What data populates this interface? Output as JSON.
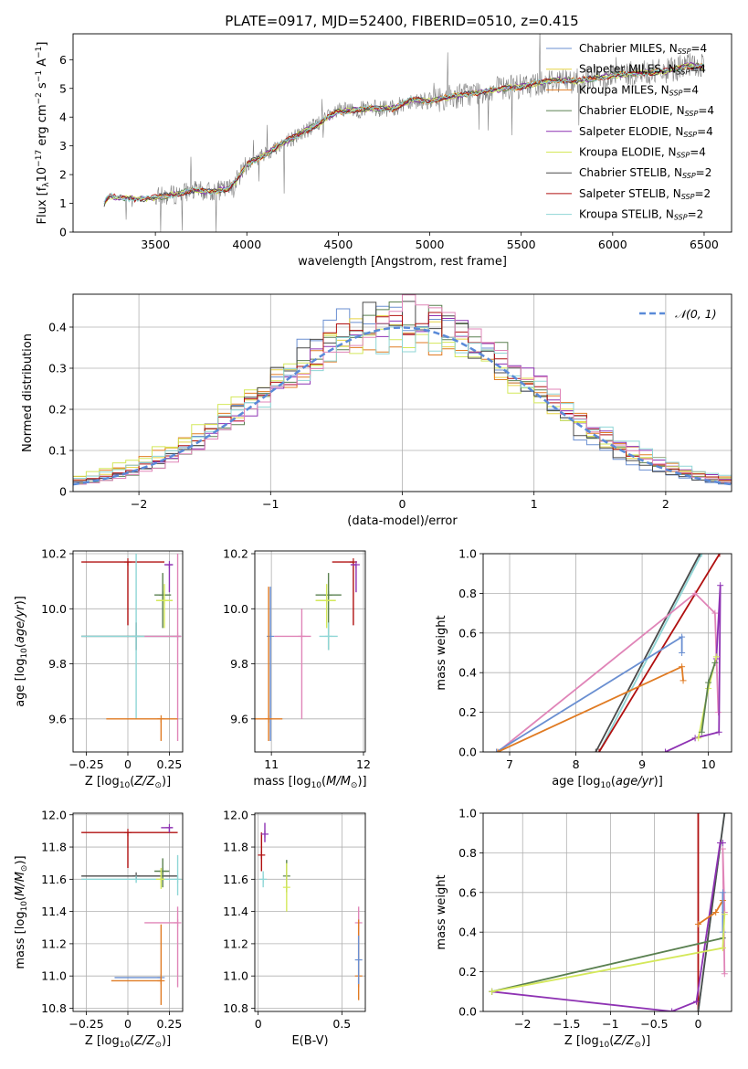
{
  "figure_title": "PLATE=0917, MJD=52400, FIBERID=0510, z=0.415",
  "colors": {
    "Chabrier MILES": "#6a8fd1",
    "Salpeter MILES": "#e5d345",
    "Kroupa MILES": "#e07b23",
    "Chabrier ELODIE": "#5a8050",
    "Salpeter ELODIE": "#8e32b3",
    "Kroupa ELODIE": "#d4e85a",
    "Chabrier STELIB": "#4a4a4a",
    "Salpeter STELIB": "#b01010",
    "Kroupa STELIB": "#8fd6d6",
    "pink": "#e085b8",
    "normal": "#5a8ad8",
    "data": "#808080"
  },
  "chart_data": [
    {
      "id": "spectrum",
      "type": "line",
      "title": "PLATE=0917, MJD=52400, FIBERID=0510, z=0.415",
      "xlabel": "wavelength [Angstrom, rest frame]",
      "ylabel": "Flux [f_λ 10^-17 erg cm^-2 s^-1 A^-1]",
      "xlim": [
        3050,
        6650
      ],
      "ylim": [
        0,
        6.9
      ],
      "xticks": [
        3500,
        4000,
        4500,
        5000,
        5500,
        6000,
        6500
      ],
      "yticks": [
        0,
        1,
        2,
        3,
        4,
        5,
        6
      ],
      "legend_position": "top-right",
      "series": [
        {
          "name": "Chabrier MILES, N_SSP=4"
        },
        {
          "name": "Salpeter MILES, N_SSP=4"
        },
        {
          "name": "Kroupa MILES, N_SSP=4"
        },
        {
          "name": "Chabrier ELODIE, N_SSP=4"
        },
        {
          "name": "Salpeter ELODIE, N_SSP=4"
        },
        {
          "name": "Kroupa ELODIE, N_SSP=4"
        },
        {
          "name": "Chabrier STELIB, N_SSP=2"
        },
        {
          "name": "Salpeter STELIB, N_SSP=2"
        },
        {
          "name": "Kroupa STELIB, N_SSP=2"
        }
      ],
      "continuum": {
        "x": [
          3200,
          3220,
          3250,
          3300,
          3400,
          3500,
          3600,
          3700,
          3800,
          3900,
          3950,
          4000,
          4100,
          4200,
          4300,
          4400,
          4500,
          4600,
          4700,
          4800,
          4900,
          5000,
          5100,
          5200,
          5300,
          5400,
          5500,
          5600,
          5700,
          5800,
          5900,
          6000,
          6100,
          6200,
          6300,
          6400,
          6500
        ],
        "y": [
          0,
          1.0,
          1.25,
          1.2,
          1.15,
          1.2,
          1.3,
          1.45,
          1.4,
          1.5,
          1.85,
          2.35,
          2.7,
          3.1,
          3.45,
          3.8,
          4.2,
          4.25,
          4.3,
          4.3,
          4.6,
          4.55,
          4.7,
          4.8,
          4.9,
          5.0,
          5.05,
          5.2,
          5.3,
          5.25,
          5.35,
          5.45,
          5.5,
          5.55,
          5.6,
          5.8,
          5.75
        ]
      }
    },
    {
      "id": "residuals",
      "type": "line",
      "xlabel": "(data-model)/error",
      "ylabel": "Normed distribution",
      "xlim": [
        -2.5,
        2.5
      ],
      "ylim": [
        0,
        0.48
      ],
      "xticks": [
        -2,
        -1,
        0,
        1,
        2
      ],
      "yticks": [
        0.0,
        0.1,
        0.2,
        0.3,
        0.4
      ],
      "grid": true,
      "legend_position": "top-right",
      "legend": [
        "𝒩(0, 1)"
      ]
    },
    {
      "id": "age_vs_Z",
      "type": "scatter",
      "xlabel": "Z [log10(Z/Z⊙)]",
      "ylabel": "age  [log10(age/yr)]",
      "xlim": [
        -0.33,
        0.33
      ],
      "ylim": [
        9.48,
        10.21
      ],
      "xticks": [
        -0.25,
        0.0,
        0.25
      ],
      "yticks": [
        9.6,
        9.8,
        10.0,
        10.2
      ],
      "grid": true,
      "points": [
        {
          "c": "Salpeter STELIB",
          "x": 0.0,
          "y": 10.17,
          "xerr": [
            0.28,
            0.22
          ],
          "yerr": [
            0.23,
            0.0
          ]
        },
        {
          "c": "Chabrier STELIB",
          "x": 0.05,
          "y": 9.9,
          "xerr": [
            0.33,
            0.27
          ],
          "yerr": [
            0.05,
            0.05
          ]
        },
        {
          "c": "Kroupa STELIB",
          "x": 0.05,
          "y": 9.9,
          "xerr": [
            0.33,
            0.27
          ],
          "yerr": [
            0.3,
            0.3
          ]
        },
        {
          "c": "pink",
          "x": 0.3,
          "y": 9.9,
          "xerr": [
            0.2,
            0.0
          ],
          "yerr": [
            0.38,
            0.3
          ]
        },
        {
          "c": "Kroupa MILES",
          "x": 0.2,
          "y": 9.6,
          "xerr": [
            0.33,
            0.1
          ],
          "yerr": [
            0.08,
            0.0
          ]
        },
        {
          "c": "Chabrier ELODIE",
          "x": 0.21,
          "y": 10.05,
          "xerr": [
            0.05,
            0.05
          ],
          "yerr": [
            0.12,
            0.08
          ]
        },
        {
          "c": "Kroupa ELODIE",
          "x": 0.22,
          "y": 10.03,
          "xerr": [
            0.05,
            0.05
          ],
          "yerr": [
            0.1,
            0.06
          ]
        },
        {
          "c": "Salpeter ELODIE",
          "x": 0.25,
          "y": 10.16,
          "xerr": [
            0.03,
            0.02
          ],
          "yerr": [
            0.1,
            0.0
          ]
        }
      ]
    },
    {
      "id": "age_vs_mass",
      "type": "scatter",
      "xlabel": "mass [log10(M/M⊙)]",
      "xlim": [
        10.82,
        12.02
      ],
      "ylim": [
        9.48,
        10.21
      ],
      "xticks": [
        11,
        12
      ],
      "yticks": [
        9.6,
        9.8,
        10.0,
        10.2
      ],
      "grid": true,
      "points": [
        {
          "c": "Salpeter STELIB",
          "x": 11.89,
          "y": 10.17,
          "xerr": [
            0.23,
            0.0
          ],
          "yerr": [
            0.23,
            0.0
          ]
        },
        {
          "c": "Salpeter ELODIE",
          "x": 11.92,
          "y": 10.16,
          "xerr": [
            0.06,
            0.0
          ],
          "yerr": [
            0.1,
            0.0
          ]
        },
        {
          "c": "Chabrier ELODIE",
          "x": 11.62,
          "y": 10.05,
          "xerr": [
            0.14,
            0.14
          ],
          "yerr": [
            0.2,
            0.08
          ]
        },
        {
          "c": "Kroupa ELODIE",
          "x": 11.6,
          "y": 10.03,
          "xerr": [
            0.12,
            0.1
          ],
          "yerr": [
            0.1,
            0.06
          ]
        },
        {
          "c": "Kroupa STELIB",
          "x": 11.62,
          "y": 9.9,
          "xerr": [
            0.1,
            0.1
          ],
          "yerr": [
            0.05,
            0.05
          ]
        },
        {
          "c": "pink",
          "x": 11.33,
          "y": 9.9,
          "xerr": [
            0.3,
            0.1
          ],
          "yerr": [
            0.3,
            0.1
          ]
        },
        {
          "c": "Chabrier MILES",
          "x": 10.99,
          "y": 9.9,
          "xerr": [
            0.0,
            0.0
          ],
          "yerr": [
            0.38,
            0.18
          ]
        },
        {
          "c": "Kroupa MILES",
          "x": 10.97,
          "y": 9.6,
          "xerr": [
            0.15,
            0.15
          ],
          "yerr": [
            0.08,
            0.48
          ]
        }
      ]
    },
    {
      "id": "cumulative_age",
      "type": "line",
      "xlabel": "age  [log10(age/yr)]",
      "ylabel": "mass weight",
      "xlim": [
        6.6,
        10.35
      ],
      "ylim": [
        0,
        1.0
      ],
      "xticks": [
        7,
        8,
        9,
        10
      ],
      "yticks": [
        0.0,
        0.2,
        0.4,
        0.6,
        0.8,
        1.0
      ],
      "grid": true,
      "series": [
        {
          "c": "Kroupa STELIB",
          "x": [
            8.35,
            9.9
          ],
          "y": [
            0.0,
            1.0
          ]
        },
        {
          "c": "Chabrier STELIB",
          "x": [
            8.3,
            9.87
          ],
          "y": [
            0.0,
            1.0
          ]
        },
        {
          "c": "Salpeter STELIB",
          "x": [
            8.35,
            10.17
          ],
          "y": [
            0.0,
            1.0
          ]
        },
        {
          "c": "pink",
          "x": [
            6.82,
            9.8,
            10.1,
            10.15
          ],
          "y": [
            0.0,
            0.8,
            0.7,
            0.2
          ]
        },
        {
          "c": "Chabrier MILES",
          "x": [
            6.8,
            9.6,
            9.6
          ],
          "y": [
            0.0,
            0.58,
            0.5
          ]
        },
        {
          "c": "Kroupa MILES",
          "x": [
            6.82,
            9.6,
            9.62
          ],
          "y": [
            0.0,
            0.43,
            0.36
          ]
        },
        {
          "c": "Salpeter ELODIE",
          "x": [
            9.35,
            9.8,
            10.16,
            10.18,
            10.12
          ],
          "y": [
            0.0,
            0.07,
            0.1,
            0.84,
            0.47
          ]
        },
        {
          "c": "Kroupa ELODIE",
          "x": [
            9.85,
            10.0,
            10.12
          ],
          "y": [
            0.07,
            0.32,
            0.48
          ]
        },
        {
          "c": "Chabrier ELODIE",
          "x": [
            9.9,
            10.0,
            10.1
          ],
          "y": [
            0.1,
            0.35,
            0.45
          ]
        }
      ]
    },
    {
      "id": "mass_vs_Z",
      "type": "scatter",
      "xlabel": "Z [log10(Z/Z⊙)]",
      "ylabel": "mass [log10(M/M⊙)]",
      "xlim": [
        -0.33,
        0.33
      ],
      "ylim": [
        10.78,
        12.01
      ],
      "xticks": [
        -0.25,
        0.0,
        0.25
      ],
      "yticks": [
        10.8,
        11.0,
        11.2,
        11.4,
        11.6,
        11.8,
        12.0
      ],
      "grid": true,
      "points": [
        {
          "c": "Salpeter STELIB",
          "x": 0.0,
          "y": 11.89,
          "xerr": [
            0.28,
            0.3
          ],
          "yerr": [
            0.22,
            0.0
          ]
        },
        {
          "c": "Salpeter ELODIE",
          "x": 0.25,
          "y": 11.92,
          "xerr": [
            0.05,
            0.02
          ],
          "yerr": [
            0.03,
            0.0
          ]
        },
        {
          "c": "Chabrier STELIB",
          "x": 0.05,
          "y": 11.62,
          "xerr": [
            0.33,
            0.25
          ],
          "yerr": [
            0.02,
            0.0
          ]
        },
        {
          "c": "Kroupa STELIB",
          "x": 0.05,
          "y": 11.6,
          "xerr": [
            0.33,
            0.25
          ],
          "yerr": [
            0.02,
            0.0
          ]
        },
        {
          "c": "Chabrier ELODIE",
          "x": 0.21,
          "y": 11.65,
          "xerr": [
            0.05,
            0.04
          ],
          "yerr": [
            0.1,
            0.08
          ]
        },
        {
          "c": "Kroupa ELODIE",
          "x": 0.2,
          "y": 11.6,
          "xerr": [
            0.03,
            0.02
          ],
          "yerr": [
            0.06,
            0.07
          ]
        },
        {
          "c": "Kroupa STELIB",
          "x": 0.3,
          "y": 11.6,
          "xerr": [
            0.0,
            0.0
          ],
          "yerr": [
            0.1,
            0.15
          ]
        },
        {
          "c": "pink",
          "x": 0.3,
          "y": 11.33,
          "xerr": [
            0.2,
            0.0
          ],
          "yerr": [
            0.4,
            0.1
          ]
        },
        {
          "c": "Chabrier MILES",
          "x": 0.2,
          "y": 10.99,
          "xerr": [
            0.28,
            0.0
          ],
          "yerr": [
            0.0,
            0.0
          ]
        },
        {
          "c": "Kroupa MILES",
          "x": 0.2,
          "y": 10.97,
          "xerr": [
            0.3,
            0.0
          ],
          "yerr": [
            0.15,
            0.35
          ]
        }
      ]
    },
    {
      "id": "mass_vs_EBV",
      "type": "scatter",
      "xlabel": "E(B-V)",
      "xlim": [
        -0.02,
        0.64
      ],
      "ylim": [
        10.78,
        12.01
      ],
      "xticks": [
        0.0,
        0.5
      ],
      "yticks": [
        10.8,
        11.0,
        11.2,
        11.4,
        11.6,
        11.8,
        12.0
      ],
      "grid": true,
      "points": [
        {
          "c": "Salpeter STELIB",
          "x": 0.02,
          "y": 11.75,
          "xerr": [
            0,
            0
          ],
          "yerr": [
            0.1,
            0.14
          ]
        },
        {
          "c": "Salpeter ELODIE",
          "x": 0.04,
          "y": 11.88,
          "xerr": [
            0,
            0
          ],
          "yerr": [
            0.05,
            0.07
          ]
        },
        {
          "c": "Kroupa STELIB",
          "x": 0.03,
          "y": 11.6,
          "xerr": [
            0,
            0
          ],
          "yerr": [
            0.05,
            0.05
          ]
        },
        {
          "c": "Chabrier ELODIE",
          "x": 0.17,
          "y": 11.62,
          "xerr": [
            0,
            0
          ],
          "yerr": [
            0.1,
            0.1
          ]
        },
        {
          "c": "Kroupa ELODIE",
          "x": 0.17,
          "y": 11.55,
          "xerr": [
            0,
            0
          ],
          "yerr": [
            0.15,
            0.15
          ]
        },
        {
          "c": "pink",
          "x": 0.6,
          "y": 11.33,
          "xerr": [
            0,
            0
          ],
          "yerr": [
            0.4,
            0.1
          ]
        },
        {
          "c": "Kroupa MILES",
          "x": 0.6,
          "y": 11.0,
          "xerr": [
            0,
            0
          ],
          "yerr": [
            0.15,
            0.35
          ]
        },
        {
          "c": "Chabrier MILES",
          "x": 0.6,
          "y": 11.1,
          "xerr": [
            0,
            0
          ],
          "yerr": [
            0.15,
            0.15
          ]
        }
      ]
    },
    {
      "id": "cumulative_Z",
      "type": "line",
      "xlabel": "Z [log10(Z/Z⊙)]",
      "ylabel": "mass weight",
      "xlim": [
        -2.45,
        0.38
      ],
      "ylim": [
        0,
        1.0
      ],
      "xticks": [
        -2.0,
        -1.5,
        -1.0,
        -0.5,
        0.0
      ],
      "yticks": [
        0.0,
        0.2,
        0.4,
        0.6,
        0.8,
        1.0
      ],
      "grid": true,
      "series": [
        {
          "c": "Salpeter STELIB",
          "x": [
            0.0,
            0.0
          ],
          "y": [
            0.0,
            1.0
          ]
        },
        {
          "c": "Kroupa STELIB",
          "x": [
            0.0,
            0.3
          ],
          "y": [
            0.0,
            1.0
          ]
        },
        {
          "c": "Chabrier STELIB",
          "x": [
            0.0,
            0.3
          ],
          "y": [
            0.0,
            1.0
          ]
        },
        {
          "c": "pink",
          "x": [
            0.3,
            0.28,
            0.3
          ],
          "y": [
            0.19,
            0.82,
            0.5
          ]
        },
        {
          "c": "Salpeter ELODIE",
          "x": [
            -2.35,
            -0.3,
            -0.02,
            0.25,
            0.28
          ],
          "y": [
            0.1,
            0.0,
            0.05,
            0.85,
            0.85
          ]
        },
        {
          "c": "Kroupa MILES",
          "x": [
            0.0,
            0.2,
            0.28
          ],
          "y": [
            0.44,
            0.5,
            0.56
          ]
        },
        {
          "c": "Chabrier ELODIE",
          "x": [
            -2.35,
            0.28
          ],
          "y": [
            0.1,
            0.37
          ]
        },
        {
          "c": "Kroupa ELODIE",
          "x": [
            -2.35,
            0.28
          ],
          "y": [
            0.1,
            0.32
          ]
        },
        {
          "c": "Chabrier MILES",
          "x": [
            0.28,
            0.28
          ],
          "y": [
            0.4,
            0.6
          ]
        },
        {
          "c": "Kroupa ELODIE",
          "x": [
            0.28,
            0.3
          ],
          "y": [
            0.32,
            0.49
          ]
        }
      ]
    }
  ]
}
